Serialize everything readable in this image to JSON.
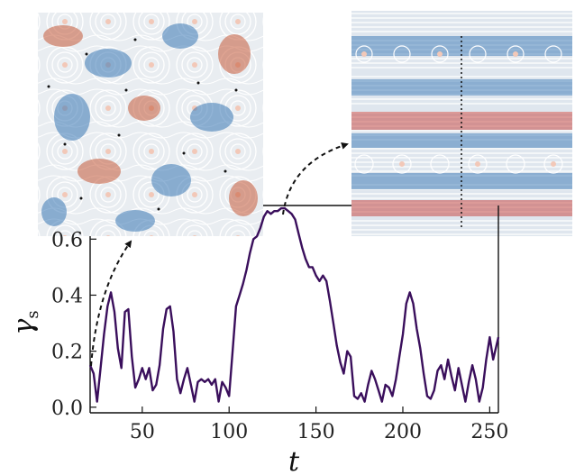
{
  "chart_data": {
    "type": "line",
    "title": "",
    "xlabel": "t",
    "ylabel": "γ",
    "ylabel_subscript": "s",
    "xlim": [
      20,
      255
    ],
    "ylim": [
      -0.02,
      0.72
    ],
    "xticks": [
      50,
      100,
      150,
      200,
      250
    ],
    "xtick_labels": [
      "50",
      "100",
      "150",
      "200",
      "250"
    ],
    "yticks": [
      0.0,
      0.2,
      0.4,
      0.6
    ],
    "ytick_labels": [
      "0.0",
      "0.2",
      "0.4",
      "0.6"
    ],
    "grid": false,
    "series": [
      {
        "color": "#3a0f5c",
        "x": [
          20,
          22,
          24,
          26,
          28,
          30,
          32,
          34,
          36,
          38,
          40,
          42,
          44,
          46,
          48,
          50,
          52,
          54,
          56,
          58,
          60,
          62,
          64,
          66,
          68,
          70,
          72,
          74,
          76,
          78,
          80,
          82,
          84,
          86,
          88,
          90,
          92,
          94,
          96,
          98,
          100,
          102,
          104,
          106,
          108,
          110,
          112,
          114,
          116,
          118,
          120,
          122,
          124,
          126,
          128,
          130,
          132,
          134,
          136,
          138,
          140,
          142,
          144,
          146,
          148,
          150,
          152,
          154,
          156,
          158,
          160,
          162,
          164,
          166,
          168,
          170,
          172,
          174,
          176,
          178,
          180,
          182,
          184,
          186,
          188,
          190,
          192,
          194,
          196,
          198,
          200,
          202,
          204,
          206,
          208,
          210,
          212,
          214,
          216,
          218,
          220,
          222,
          224,
          226,
          228,
          230,
          232,
          234,
          236,
          238,
          240,
          242,
          244,
          246,
          248,
          250,
          252,
          255
        ],
        "y": [
          0.15,
          0.12,
          0.02,
          0.14,
          0.26,
          0.36,
          0.41,
          0.34,
          0.21,
          0.14,
          0.34,
          0.35,
          0.18,
          0.07,
          0.1,
          0.14,
          0.1,
          0.14,
          0.06,
          0.08,
          0.15,
          0.28,
          0.35,
          0.36,
          0.27,
          0.1,
          0.05,
          0.1,
          0.14,
          0.08,
          0.02,
          0.09,
          0.1,
          0.09,
          0.1,
          0.08,
          0.1,
          0.02,
          0.09,
          0.07,
          0.04,
          0.2,
          0.36,
          0.4,
          0.44,
          0.49,
          0.55,
          0.6,
          0.61,
          0.64,
          0.68,
          0.7,
          0.69,
          0.7,
          0.7,
          0.71,
          0.71,
          0.7,
          0.69,
          0.67,
          0.62,
          0.57,
          0.53,
          0.5,
          0.5,
          0.47,
          0.45,
          0.47,
          0.45,
          0.38,
          0.3,
          0.22,
          0.16,
          0.12,
          0.2,
          0.18,
          0.04,
          0.03,
          0.05,
          0.02,
          0.08,
          0.13,
          0.1,
          0.06,
          0.02,
          0.08,
          0.07,
          0.04,
          0.1,
          0.18,
          0.26,
          0.37,
          0.41,
          0.37,
          0.28,
          0.21,
          0.12,
          0.04,
          0.03,
          0.06,
          0.13,
          0.15,
          0.1,
          0.17,
          0.11,
          0.06,
          0.14,
          0.08,
          0.02,
          0.09,
          0.15,
          0.1,
          0.02,
          0.07,
          0.17,
          0.25,
          0.17,
          0.25
        ]
      }
    ]
  }
}
